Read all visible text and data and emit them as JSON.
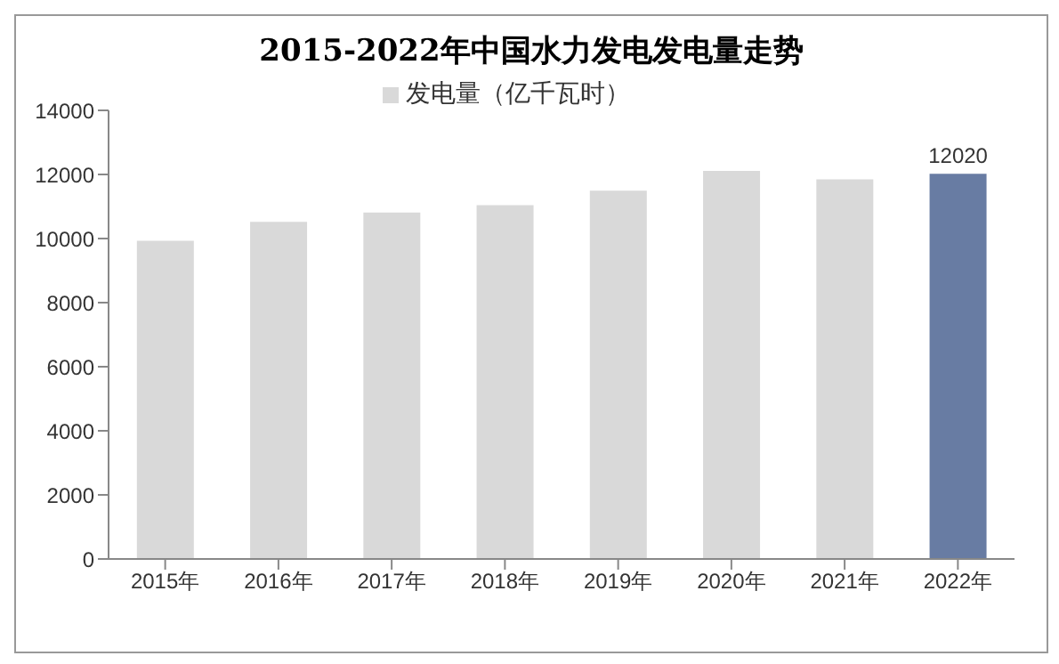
{
  "chart_data": {
    "type": "bar",
    "title": "2015-2022年中国水力发电发电量走势",
    "categories": [
      "2015年",
      "2016年",
      "2017年",
      "2018年",
      "2019年",
      "2020年",
      "2021年",
      "2022年"
    ],
    "series": [
      {
        "name": "发电量（亿千瓦时）",
        "color": "#d9d9d9",
        "colors": [
          "#d9d9d9",
          "#d9d9d9",
          "#d9d9d9",
          "#d9d9d9",
          "#d9d9d9",
          "#d9d9d9",
          "#d9d9d9",
          "#687ca3"
        ],
        "values": [
          9930,
          10520,
          10810,
          11040,
          11490,
          12110,
          11850,
          12020
        ],
        "value_labels": [
          null,
          null,
          null,
          null,
          null,
          null,
          null,
          "12020"
        ]
      }
    ],
    "ylim": [
      0,
      14000
    ],
    "yticks": [
      0,
      2000,
      4000,
      6000,
      8000,
      10000,
      12000,
      14000
    ],
    "grid": false,
    "legend": "top"
  }
}
